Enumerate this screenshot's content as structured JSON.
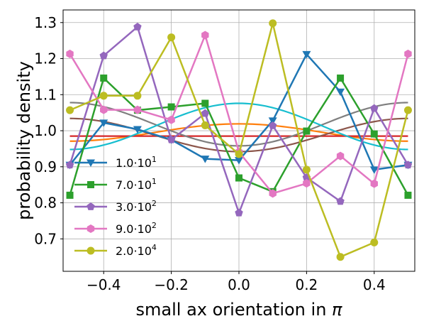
{
  "chart_data": {
    "type": "line",
    "xlabel_text": "small ax orientation  in ",
    "xlabel_symbol": "π",
    "ylabel": "probability density",
    "xlim": [
      -0.52,
      0.52
    ],
    "ylim": [
      0.61,
      1.335
    ],
    "xticks": [
      -0.4,
      -0.2,
      0.0,
      0.2,
      0.4
    ],
    "xtick_labels": [
      "−0.4",
      "−0.2",
      "0.0",
      "0.2",
      "0.4"
    ],
    "yticks": [
      0.7,
      0.8,
      0.9,
      1.0,
      1.1,
      1.2,
      1.3
    ],
    "ytick_labels": [
      "0.7",
      "0.8",
      "0.9",
      "1.0",
      "1.1",
      "1.2",
      "1.3"
    ],
    "grid": true,
    "legend_position": "lower-left",
    "x": [
      -0.5,
      -0.4,
      -0.3,
      -0.2,
      -0.1,
      0.0,
      0.1,
      0.2,
      0.3,
      0.4,
      0.5
    ],
    "series": [
      {
        "name_mantissa": "1.0",
        "name_exp": "1",
        "color": "#1f77b4",
        "marker": "triangle-down",
        "values": [
          0.905,
          1.022,
          1.004,
          0.975,
          0.922,
          0.918,
          1.028,
          1.212,
          1.108,
          0.892,
          0.905
        ]
      },
      {
        "name_mantissa": "7.0",
        "name_exp": "1",
        "color": "#2ca02c",
        "marker": "square",
        "values": [
          0.821,
          1.146,
          1.057,
          1.066,
          1.076,
          0.869,
          0.831,
          0.999,
          1.146,
          0.991,
          0.821
        ]
      },
      {
        "name_mantissa": "3.0",
        "name_exp": "2",
        "color": "#9467bd",
        "marker": "pentagon",
        "values": [
          0.905,
          1.208,
          1.288,
          0.975,
          1.048,
          0.772,
          1.014,
          0.87,
          0.804,
          1.062,
          0.905
        ]
      },
      {
        "name_mantissa": "9.0",
        "name_exp": "2",
        "color": "#e377c2",
        "marker": "hexagon",
        "values": [
          1.213,
          1.058,
          1.058,
          1.03,
          1.265,
          0.941,
          0.826,
          0.854,
          0.93,
          0.853,
          1.213
        ]
      },
      {
        "name_mantissa": "2.0",
        "name_exp": "4",
        "color": "#bcbd22",
        "marker": "circle",
        "values": [
          1.057,
          1.097,
          1.097,
          1.259,
          1.015,
          0.935,
          1.298,
          0.892,
          0.65,
          0.69,
          1.057
        ]
      }
    ],
    "smooth_curves": [
      {
        "color": "#ff7f0e",
        "base": 0.995,
        "amp": 0.024,
        "peak": 0.0,
        "sign": 1
      },
      {
        "color": "#d62728",
        "base": 0.985,
        "amp": 0.0,
        "peak": 0.0,
        "sign": 1
      },
      {
        "color": "#8c564b",
        "base": 0.988,
        "amp": 0.046,
        "peak": 0.5,
        "sign": 1
      },
      {
        "color": "#7f7f7f",
        "base": 1.018,
        "amp": 0.06,
        "peak": 0.5,
        "sign": 1
      },
      {
        "color": "#17becf",
        "base": 1.012,
        "amp": 0.064,
        "peak": 0.0,
        "sign": 1
      }
    ]
  }
}
